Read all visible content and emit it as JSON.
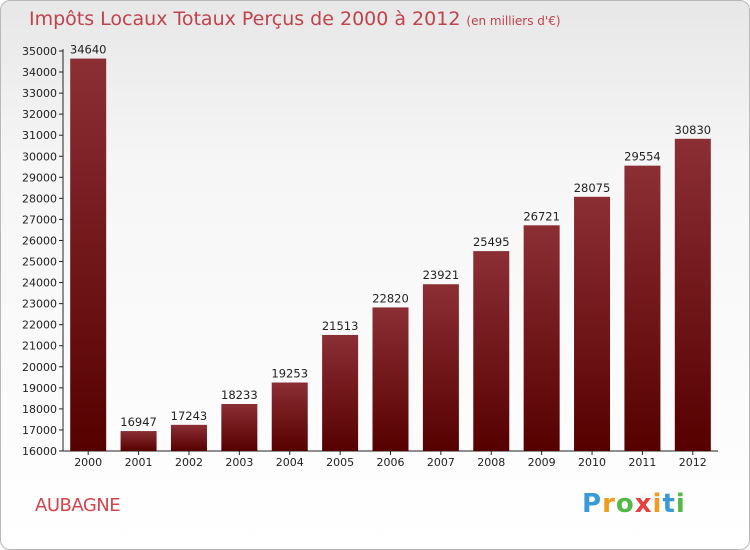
{
  "header": {
    "title": "Impôts Locaux Totaux Perçus de 2000 à 2012",
    "unit": "(en milliers d'€)"
  },
  "city": "AUBAGNE",
  "logo": {
    "letters": [
      "P",
      "r",
      "o",
      "x",
      "i",
      "t",
      "i"
    ],
    "colors": [
      "#3a9ad9",
      "#f29b1e",
      "#55b949",
      "#e8403c",
      "#f29b1e",
      "#3a9ad9",
      "#55b949"
    ]
  },
  "colors": {
    "bar_top": "#8b2f35",
    "bar_bottom": "#560000"
  },
  "chart_data": {
    "type": "bar",
    "title": "Impôts Locaux Totaux Perçus de 2000 à 2012",
    "categories": [
      "2000",
      "2001",
      "2002",
      "2003",
      "2004",
      "2005",
      "2006",
      "2007",
      "2008",
      "2009",
      "2010",
      "2011",
      "2012"
    ],
    "values": [
      34640,
      16947,
      17243,
      18233,
      19253,
      21513,
      22820,
      23921,
      25495,
      26721,
      28075,
      29554,
      30830
    ],
    "ylim": [
      16000,
      35000
    ],
    "ytick_step": 1000,
    "grid": false,
    "data_labels": true
  }
}
